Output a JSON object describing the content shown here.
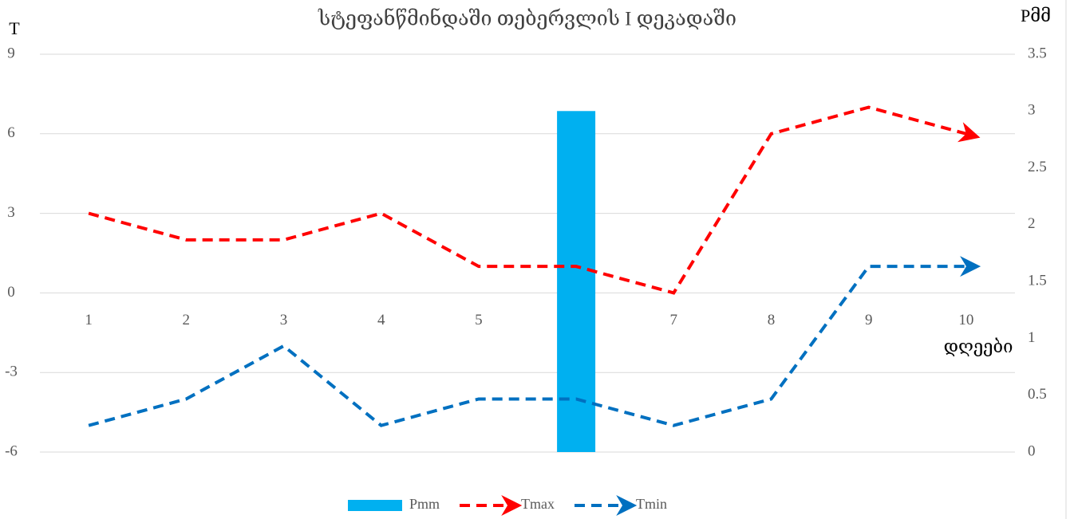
{
  "chart_data": {
    "type": "bar-line",
    "title": "სტეფანწმინდაში  თებერვლის I დეკადაში",
    "y_label": "T",
    "y2_label": "Pმმ",
    "x_label": "დღეები",
    "categories": [
      "1",
      "2",
      "3",
      "4",
      "5",
      "6",
      "7",
      "8",
      "9",
      "10"
    ],
    "series": [
      {
        "name": "Pmm",
        "type": "bar",
        "axis": "y2",
        "color": "#00b0f0",
        "values": [
          0,
          0,
          0,
          0,
          0,
          3,
          0,
          0,
          0,
          0
        ]
      },
      {
        "name": "Tmax",
        "type": "line",
        "axis": "y",
        "color": "#ff0000",
        "values": [
          3,
          2,
          2,
          3,
          1,
          1,
          0,
          6,
          7,
          6
        ]
      },
      {
        "name": "Tmin",
        "type": "line",
        "axis": "y",
        "color": "#0070c0",
        "values": [
          -5,
          -4,
          -2,
          -5,
          -4,
          -4,
          -5,
          -4,
          1,
          1
        ]
      }
    ],
    "ylim": [
      -6,
      9
    ],
    "yticks": [
      -6,
      -3,
      0,
      3,
      6,
      9
    ],
    "y2lim": [
      0,
      3.5
    ],
    "y2ticks": [
      0,
      0.5,
      1,
      1.5,
      2,
      2.5,
      3,
      3.5
    ],
    "grid": true,
    "legend": "bottom"
  }
}
